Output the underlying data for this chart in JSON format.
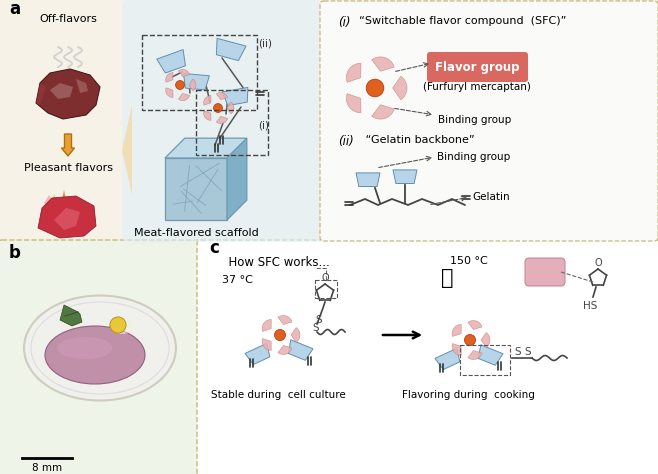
{
  "fig_width": 6.58,
  "fig_height": 4.74,
  "dpi": 100,
  "bg_color": "#ffffff",
  "panel_a_bg": "#f7f2e8",
  "panel_b_bg": "#eef4e8",
  "border_color": "#c8b87a",
  "blue_light": "#b8d4e8",
  "blue_mid": "#90b8d0",
  "blue_dark": "#6090b0",
  "orange_color": "#e06020",
  "pink_petal": "#e8b0b0",
  "pink_light": "#f0c8c0",
  "red_box": "#d96860",
  "arrow_orange": "#e8a030",
  "meat_raw_dark": "#7a2828",
  "meat_raw_mid": "#a03838",
  "meat_raw_fat": "#d4a0a0",
  "meat_cooked": "#c03040",
  "meat_cooked_light": "#e06070",
  "flame_orange": "#e87020",
  "flame_yellow": "#f0b030",
  "steam_color": "#c8c8c8",
  "scaffold_face": "#a8c8d8",
  "scaffold_top": "#c0dce8",
  "scaffold_right": "#80a8c0",
  "text_dark": "#222222",
  "chem_line": "#444444",
  "label_a": "a",
  "label_b": "b",
  "label_c": "c",
  "off_flavors": "Off-flavors",
  "pleasant_flavors": "Pleasant flavors",
  "scaffold_label": "Meat-flavored scaffold",
  "sfc_title_i": "(i)",
  "sfc_title_rest": "  “Switchable flavor compound  (SFC)”",
  "flavor_group_text": "Flavor group",
  "furfuryl_text": "(Furfuryl mercaptan)",
  "binding_group_text": "Binding group",
  "gelatin_title_ii": "(ii)",
  "gelatin_title_rest": "   “Gelatin backbone”",
  "gelatin_text": "Gelatin",
  "how_sfc_c": "c",
  "how_sfc_text": "  How SFC works...",
  "temp_37": "37 °C",
  "temp_150": "150 °C",
  "stable_text": "Stable during  cell culture",
  "flavoring_text": "Flavoring during  cooking",
  "scale_8mm": "8 mm",
  "label_ii_mid": "(ii)",
  "label_i_mid": "(i)"
}
